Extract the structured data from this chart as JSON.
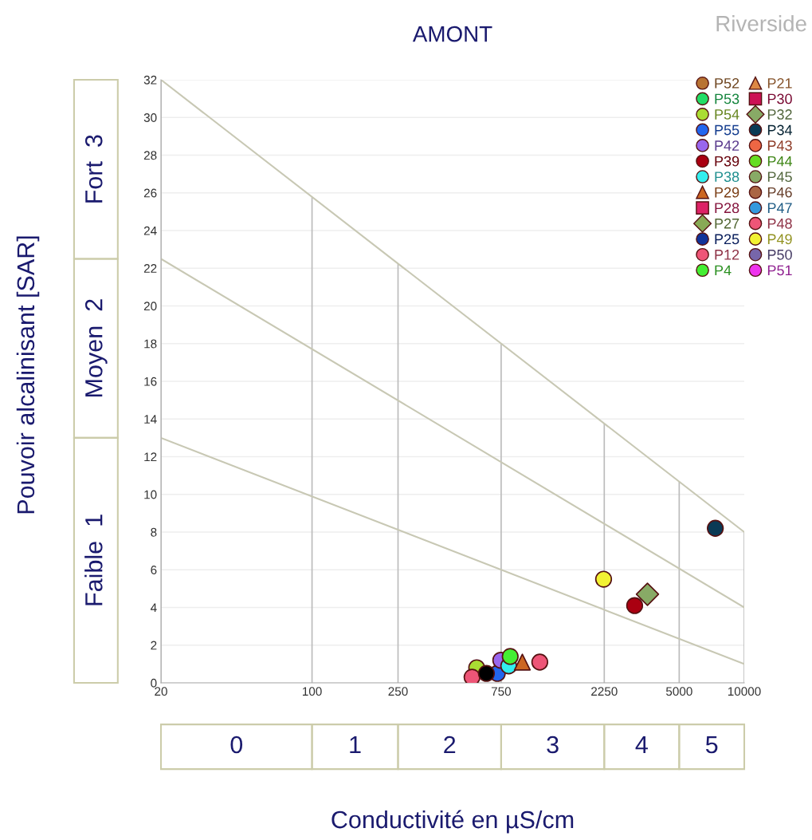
{
  "chart_data": {
    "type": "scatter",
    "title": "AMONT",
    "xlabel": "Conductivité en µS/cm",
    "ylabel": "Pouvoir alcalinisant [SAR]",
    "annotations": [
      "Riverside",
      "0",
      "1",
      "2",
      "3",
      "4",
      "5",
      "Faible  1",
      "Moyen  2",
      "Fort  3"
    ],
    "log": "x",
    "xlim": [
      20,
      10000
    ],
    "xticks": [
      20,
      100,
      250,
      750,
      2250,
      5000,
      10000
    ],
    "ylim": [
      0,
      32
    ],
    "yticks": [
      0,
      2,
      4,
      6,
      8,
      10,
      12,
      14,
      16,
      18,
      20,
      22,
      24,
      26,
      28,
      30,
      32
    ],
    "grid": true,
    "legend": "top right",
    "series": [
      {
        "type": "line",
        "color": "#c8c8b4",
        "x": [
          20,
          10000
        ],
        "values": [
          32,
          8
        ]
      },
      {
        "type": "line",
        "color": "#c8c8b4",
        "x": [
          20,
          10000
        ],
        "values": [
          22.5,
          4
        ]
      },
      {
        "type": "line",
        "color": "#c8c8b4",
        "x": [
          20,
          10000
        ],
        "values": [
          13,
          1
        ]
      },
      {
        "name": "P52",
        "color": "#b87333",
        "marker": "circle"
      },
      {
        "name": "P53",
        "color": "#22dd66",
        "marker": "circle"
      },
      {
        "name": "P54",
        "color": "#aadd33",
        "marker": "circle",
        "x": [
          578
        ],
        "values": [
          0.8
        ]
      },
      {
        "name": "P55",
        "color": "#2266ee",
        "marker": "circle",
        "x": [
          720
        ],
        "values": [
          0.5
        ]
      },
      {
        "name": "P42",
        "color": "#9966ee",
        "marker": "circle",
        "x": [
          747
        ],
        "values": [
          1.2
        ]
      },
      {
        "name": "P39",
        "color": "#aa0011",
        "marker": "circle",
        "x": [
          3110
        ],
        "values": [
          4.1
        ]
      },
      {
        "name": "P38",
        "color": "#33eeee",
        "marker": "circle",
        "x": [
          813
        ],
        "values": [
          0.9
        ]
      },
      {
        "name": "P29",
        "color": "#cc6622",
        "marker": "triangle",
        "x": [
          940
        ],
        "values": [
          1.1
        ]
      },
      {
        "name": "P28",
        "color": "#dd2266",
        "marker": "square"
      },
      {
        "name": "P27",
        "color": "#88aa55",
        "marker": "diamond"
      },
      {
        "name": "P25",
        "color": "#113399",
        "marker": "circle"
      },
      {
        "name": "P12",
        "color": "#ee5577",
        "marker": "circle",
        "x": [
          550
        ],
        "values": [
          0.3
        ]
      },
      {
        "name": "P4",
        "color": "#44ee33",
        "marker": "circle",
        "x": [
          826
        ],
        "values": [
          1.4
        ]
      },
      {
        "name": "P21",
        "color": "#dd8844",
        "marker": "triangle"
      },
      {
        "name": "P30",
        "color": "#cc1155",
        "marker": "square"
      },
      {
        "name": "P32",
        "color": "#88aa66",
        "marker": "diamond",
        "x": [
          3565
        ],
        "values": [
          4.7
        ]
      },
      {
        "name": "P34",
        "color": "#0a3a55",
        "marker": "circle",
        "x": [
          7345
        ],
        "values": [
          8.2
        ]
      },
      {
        "name": "P43",
        "color": "#ee6644",
        "marker": "circle"
      },
      {
        "name": "P44",
        "color": "#66dd22",
        "marker": "circle"
      },
      {
        "name": "P45",
        "color": "#88aa66",
        "marker": "circle"
      },
      {
        "name": "P46",
        "color": "#aa6644",
        "marker": "circle"
      },
      {
        "name": "P47",
        "color": "#3399dd",
        "marker": "circle"
      },
      {
        "name": "P48",
        "color": "#ee5577",
        "marker": "circle",
        "x": [
          1132
        ],
        "values": [
          1.1
        ]
      },
      {
        "name": "P49",
        "color": "#f2f233",
        "marker": "circle",
        "x": [
          2234
        ],
        "values": [
          5.5
        ]
      },
      {
        "name": "P50",
        "color": "#7766aa",
        "marker": "circle"
      },
      {
        "name": "P51",
        "color": "#ee33ee",
        "marker": "circle"
      },
      {
        "color": "#000000",
        "marker": "circle",
        "x": [
          641
        ],
        "values": [
          0.5
        ]
      }
    ]
  }
}
